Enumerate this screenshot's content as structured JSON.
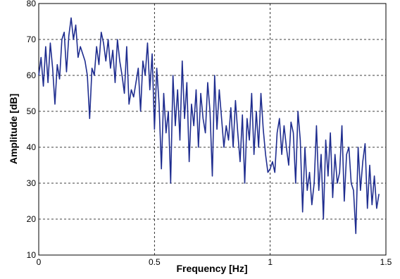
{
  "chart_data": {
    "type": "line",
    "xlabel": "Frequency [Hz]",
    "ylabel": "Amplitude [dB]",
    "xlim": [
      0,
      1.5
    ],
    "ylim": [
      10,
      80
    ],
    "xticks": [
      0,
      0.5,
      1,
      1.5
    ],
    "yticks": [
      10,
      20,
      30,
      40,
      50,
      60,
      70,
      80
    ],
    "grid": true,
    "x": [
      0,
      0.01,
      0.02,
      0.03,
      0.04,
      0.05,
      0.06,
      0.07,
      0.08,
      0.09,
      0.1,
      0.11,
      0.12,
      0.13,
      0.14,
      0.15,
      0.16,
      0.17,
      0.18,
      0.19,
      0.2,
      0.21,
      0.22,
      0.23,
      0.24,
      0.25,
      0.26,
      0.27,
      0.28,
      0.29,
      0.3,
      0.31,
      0.32,
      0.33,
      0.34,
      0.35,
      0.36,
      0.37,
      0.38,
      0.39,
      0.4,
      0.41,
      0.42,
      0.43,
      0.44,
      0.45,
      0.46,
      0.47,
      0.48,
      0.49,
      0.5,
      0.51,
      0.52,
      0.53,
      0.54,
      0.55,
      0.56,
      0.57,
      0.58,
      0.59,
      0.6,
      0.61,
      0.62,
      0.63,
      0.64,
      0.65,
      0.66,
      0.67,
      0.68,
      0.69,
      0.7,
      0.71,
      0.72,
      0.73,
      0.74,
      0.75,
      0.76,
      0.77,
      0.78,
      0.79,
      0.8,
      0.81,
      0.82,
      0.83,
      0.84,
      0.85,
      0.86,
      0.87,
      0.88,
      0.89,
      0.9,
      0.91,
      0.92,
      0.93,
      0.94,
      0.95,
      0.96,
      0.97,
      0.98,
      0.99,
      1,
      1.01,
      1.02,
      1.03,
      1.04,
      1.05,
      1.06,
      1.07,
      1.08,
      1.09,
      1.1,
      1.11,
      1.12,
      1.13,
      1.14,
      1.15,
      1.16,
      1.17,
      1.18,
      1.19,
      1.2,
      1.21,
      1.22,
      1.23,
      1.24,
      1.25,
      1.26,
      1.27,
      1.28,
      1.29,
      1.3,
      1.31,
      1.32,
      1.33,
      1.34,
      1.35,
      1.36,
      1.37,
      1.38,
      1.39,
      1.4,
      1.41,
      1.42,
      1.43,
      1.44,
      1.45,
      1.46,
      1.47
    ],
    "series": [
      {
        "color": "#1f2d8f",
        "values": [
          60,
          65,
          57,
          68,
          58,
          69,
          62,
          52,
          63,
          59,
          70,
          72,
          61,
          71,
          76,
          70,
          74,
          65,
          68,
          66,
          64,
          60,
          48,
          62,
          60,
          68,
          63,
          72,
          69,
          64,
          70,
          62,
          67,
          58,
          70,
          64,
          60,
          55,
          68,
          52,
          56,
          54,
          58,
          62,
          50,
          64,
          60,
          69,
          56,
          66,
          45,
          62,
          52,
          34,
          55,
          44,
          50,
          30,
          60,
          46,
          56,
          42,
          64,
          48,
          58,
          36,
          52,
          46,
          56,
          40,
          55,
          48,
          44,
          58,
          50,
          32,
          60,
          45,
          56,
          48,
          40,
          46,
          42,
          51,
          40,
          53,
          44,
          36,
          49,
          30,
          48,
          42,
          55,
          38,
          50,
          40,
          55,
          45,
          38,
          33,
          34,
          36,
          33,
          44,
          48,
          38,
          46,
          40,
          35,
          47,
          44,
          30,
          50,
          42,
          22,
          40,
          28,
          33,
          24,
          30,
          46,
          28,
          38,
          20,
          42,
          32,
          44,
          26,
          38,
          30,
          33,
          46,
          25,
          38,
          40,
          30,
          28,
          16,
          40,
          28,
          36,
          41,
          23,
          35,
          24,
          32,
          23,
          27
        ]
      }
    ]
  }
}
